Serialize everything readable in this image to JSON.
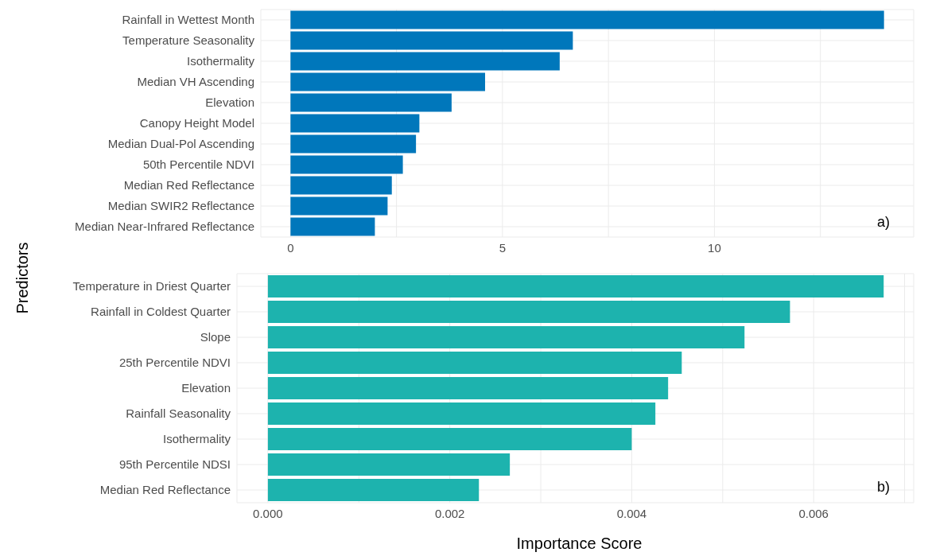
{
  "chart_data": [
    {
      "type": "bar",
      "orientation": "horizontal",
      "ylabel": "Predictors",
      "categories": [
        "Rainfall in Wettest Month",
        "Temperature Seasonality",
        "Isothermality",
        "Median VH Ascending",
        "Elevation",
        "Canopy Height Model",
        "Median Dual-Pol Ascending",
        "50th Percentile NDVI",
        "Median Red Reflectance",
        "Median SWIR2 Reflectance",
        "Median Near-Infrared Reflectance"
      ],
      "values": [
        14.0,
        6.66,
        6.35,
        4.59,
        3.8,
        3.04,
        2.96,
        2.65,
        2.39,
        2.29,
        1.99
      ],
      "color": "#0077bb",
      "xlim": [
        -0.7,
        14.7
      ],
      "xticks": [
        0,
        {
          "value": 2.5,
          "label": null
        },
        5,
        {
          "value": 7.5,
          "label": null
        },
        10,
        {
          "value": 12.5,
          "label": null
        }
      ],
      "grid": true,
      "annotations": [
        "a)"
      ]
    },
    {
      "type": "bar",
      "orientation": "horizontal",
      "xlabel": "Importance Score",
      "categories": [
        "Temperature in Driest Quarter",
        "Rainfall in Coldest Quarter",
        "Slope",
        "25th Percentile NDVI",
        "Elevation",
        "Rainfall Seasonality",
        "Isothermality",
        "95th Percentile NDSI",
        "Median Red Reflectance"
      ],
      "values": [
        0.00677,
        0.00574,
        0.00524,
        0.00455,
        0.0044,
        0.00426,
        0.004,
        0.00266,
        0.00232
      ],
      "color": "#1db3ae",
      "xlim": [
        -0.00034,
        0.0071
      ],
      "xticks": [
        {
          "value": 0,
          "label": "0.000"
        },
        {
          "value": 0.001,
          "label": null
        },
        {
          "value": 0.002,
          "label": "0.002"
        },
        {
          "value": 0.003,
          "label": null
        },
        {
          "value": 0.004,
          "label": "0.004"
        },
        {
          "value": 0.005,
          "label": null
        },
        {
          "value": 0.006,
          "label": "0.006"
        },
        {
          "value": 0.007,
          "label": null
        }
      ],
      "grid": true,
      "annotations": [
        "b)"
      ]
    }
  ]
}
